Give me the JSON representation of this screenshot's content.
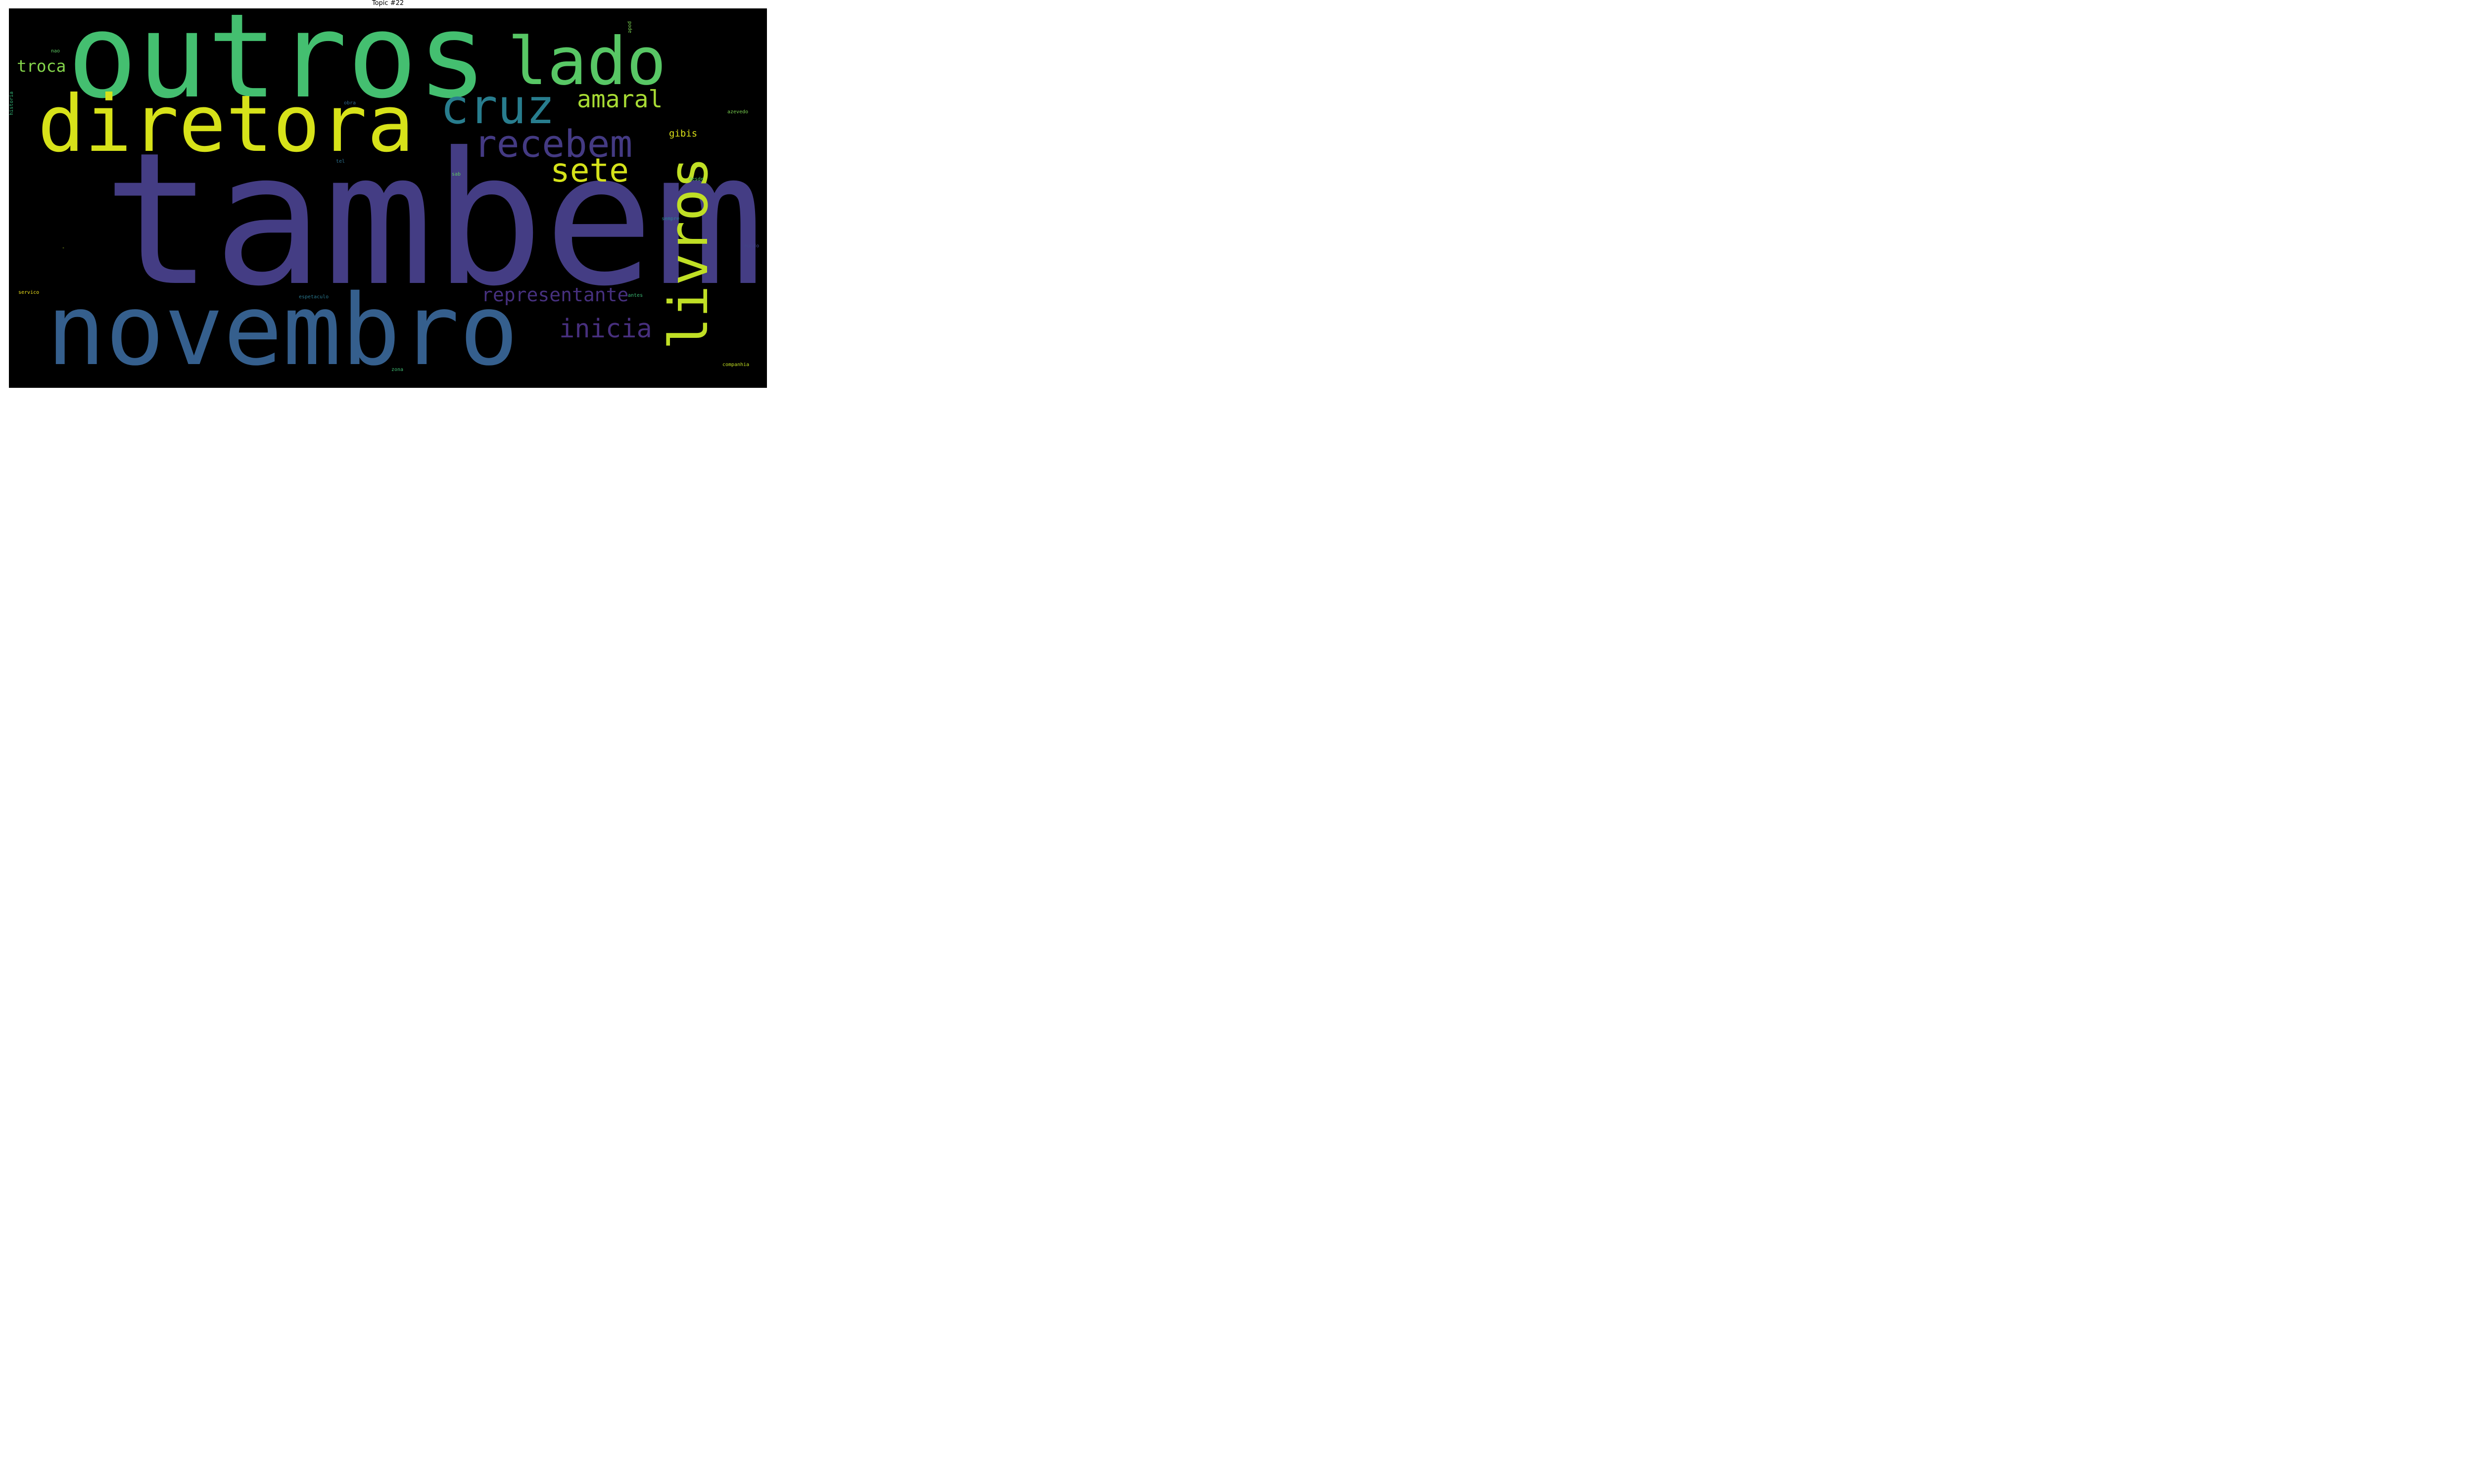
{
  "page": {
    "title": "Topic #22"
  },
  "chart_data": {
    "type": "wordcloud",
    "title": "Topic #22",
    "background_color": "#000000",
    "words": [
      {
        "text": "tambem",
        "color": "#443d84"
      },
      {
        "text": "outros",
        "color": "#44bf70"
      },
      {
        "text": "diretora",
        "color": "#d7e219"
      },
      {
        "text": "novembro",
        "color": "#355f8d"
      },
      {
        "text": "lado",
        "color": "#58c765"
      },
      {
        "text": "livros",
        "color": "#c0df25"
      },
      {
        "text": "cruz",
        "color": "#287d8e"
      },
      {
        "text": "recebem",
        "color": "#443a83"
      },
      {
        "text": "sete",
        "color": "#d5e21a"
      },
      {
        "text": "amaral",
        "color": "#a8db34"
      },
      {
        "text": "inicia",
        "color": "#472f7d"
      },
      {
        "text": "representante",
        "color": "#46307e"
      },
      {
        "text": "troca",
        "color": "#84d44b"
      },
      {
        "text": "gibis",
        "color": "#dde318"
      },
      {
        "text": "nao",
        "color": "#5ec962"
      },
      {
        "text": "pode",
        "color": "#7ad151"
      },
      {
        "text": "historia",
        "color": "#35b779"
      },
      {
        "text": "obra",
        "color": "#31688e"
      },
      {
        "text": "azevedo",
        "color": "#7ad151"
      },
      {
        "text": "tel",
        "color": "#2c728e"
      },
      {
        "text": "sab",
        "color": "#5ec962"
      },
      {
        "text": "desde",
        "color": "#52c569"
      },
      {
        "text": "sempre",
        "color": "#26828e"
      },
      {
        "text": "-",
        "color": "#b5de2b"
      },
      {
        "text": "mundo",
        "color": "#414487"
      },
      {
        "text": "servico",
        "color": "#f1e51d"
      },
      {
        "text": "espetaculo",
        "color": "#2a788e"
      },
      {
        "text": "antes",
        "color": "#3bbb75"
      },
      {
        "text": "companhia",
        "color": "#c2df23"
      },
      {
        "text": "zona",
        "color": "#3fbc73"
      }
    ]
  }
}
